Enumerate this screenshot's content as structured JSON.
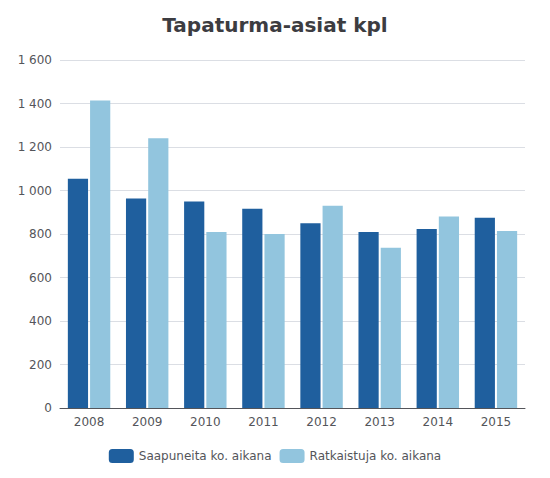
{
  "chart_data": {
    "type": "bar",
    "title": "Tapaturma-asiat kpl",
    "categories": [
      "2008",
      "2009",
      "2010",
      "2011",
      "2012",
      "2013",
      "2014",
      "2015"
    ],
    "series": [
      {
        "name": "Saapuneita ko. aikana",
        "color": "#1F5F9E",
        "values": [
          1054,
          963,
          949,
          916,
          850,
          809,
          823,
          875
        ]
      },
      {
        "name": "Ratkaistuja ko. aikana",
        "color": "#92C5DE",
        "values": [
          1414,
          1240,
          809,
          800,
          930,
          737,
          880,
          814
        ]
      }
    ],
    "ylim": [
      0,
      1600
    ],
    "yticks": [
      0,
      200,
      400,
      600,
      800,
      {
        "value": 1000,
        "label": "1 000"
      },
      {
        "value": 1200,
        "label": "1 200"
      },
      {
        "value": 1400,
        "label": "1 400"
      },
      {
        "value": 1600,
        "label": "1 600"
      }
    ],
    "grid": true,
    "legend": "bottom"
  }
}
